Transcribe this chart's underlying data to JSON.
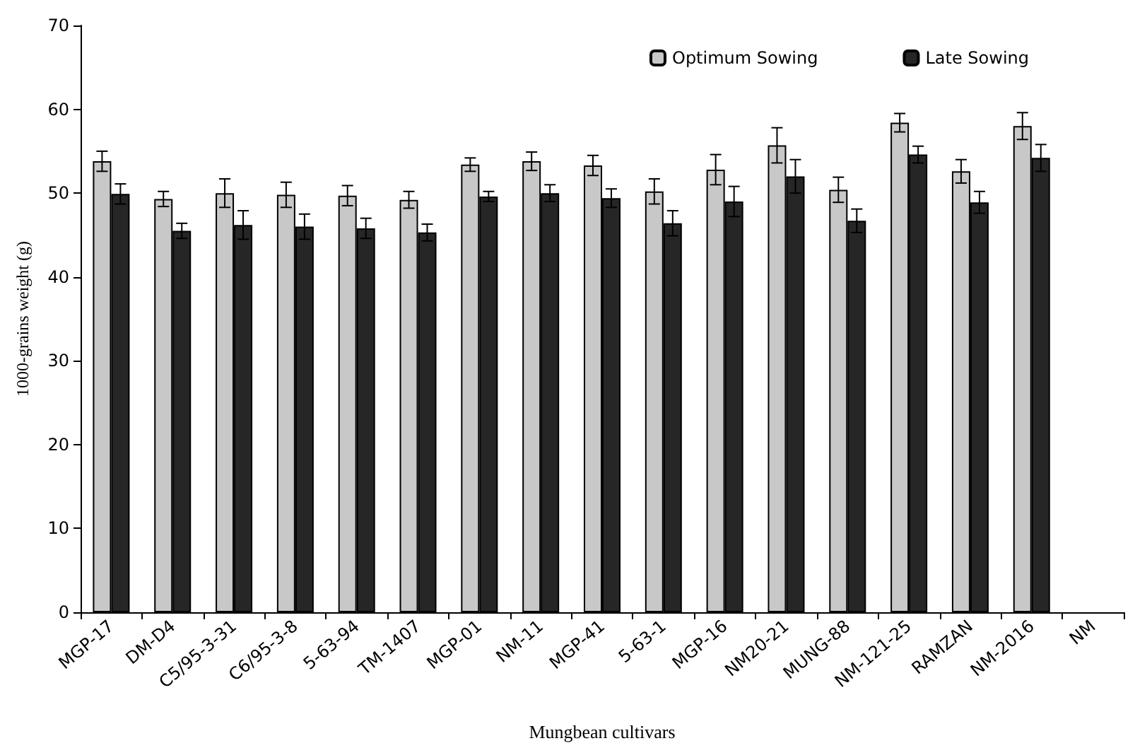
{
  "chart_data": {
    "type": "bar",
    "xlabel": "Mungbean cultivars",
    "ylabel": "1000-grains weight (g)",
    "categories": [
      "MGP-17",
      "DM-D4",
      "C5/95-3-31",
      "C6/95-3-8",
      "5-63-94",
      "TM-1407",
      "MGP-01",
      "NM-11",
      "MGP-41",
      "5-63-1",
      "MGP-16",
      "NM20-21",
      "MUNG-88",
      "NM-121-25",
      "RAMZAN",
      "NM-2016",
      "NM"
    ],
    "series": [
      {
        "name": "Optimum Sowing",
        "color": "#c8c8c8",
        "values": [
          53.8,
          49.3,
          50.0,
          49.8,
          49.7,
          49.2,
          53.4,
          53.8,
          53.3,
          50.2,
          52.8,
          55.7,
          50.4,
          58.4,
          52.6,
          58.0,
          null
        ],
        "errors": [
          1.2,
          0.9,
          1.7,
          1.5,
          1.2,
          1.0,
          0.8,
          1.1,
          1.2,
          1.5,
          1.8,
          2.1,
          1.5,
          1.1,
          1.4,
          1.6,
          null
        ]
      },
      {
        "name": "Late Sowing",
        "color": "#262626",
        "values": [
          49.9,
          45.5,
          46.2,
          46.0,
          45.8,
          45.3,
          49.6,
          50.0,
          49.4,
          46.4,
          49.0,
          52.0,
          46.7,
          54.6,
          48.9,
          54.2,
          null
        ],
        "errors": [
          1.2,
          0.9,
          1.7,
          1.5,
          1.2,
          1.0,
          0.6,
          1.0,
          1.1,
          1.5,
          1.8,
          2.0,
          1.4,
          1.0,
          1.3,
          1.6,
          null
        ]
      }
    ],
    "ylim": [
      0,
      70
    ],
    "yticks": [
      0,
      10,
      20,
      30,
      40,
      50,
      60,
      70
    ],
    "grid": false,
    "legend": "top right"
  }
}
